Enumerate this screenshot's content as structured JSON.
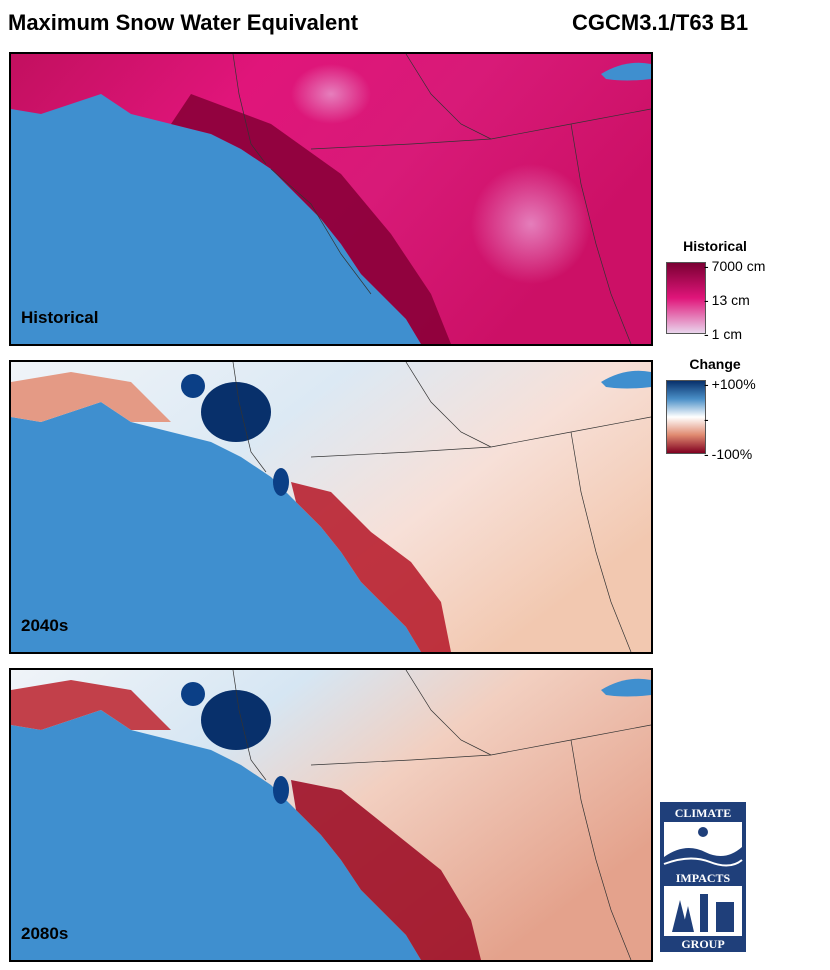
{
  "title": "Maximum Snow Water Equivalent",
  "model": "CGCM3.1/T63 B1",
  "panels": [
    {
      "label": "Historical",
      "scheme": "historical"
    },
    {
      "label": "2040s",
      "scheme": "change"
    },
    {
      "label": "2080s",
      "scheme": "change"
    }
  ],
  "legend_historical": {
    "title": "Historical",
    "ticks": [
      "7000 cm",
      "13 cm",
      "1 cm"
    ],
    "colors": [
      "#7a0033",
      "#e0157a",
      "#e9d4ec"
    ]
  },
  "legend_change": {
    "title": "Change",
    "ticks": [
      "+100%",
      "",
      "-100%"
    ],
    "colors": [
      "#08306b",
      "#ffffff",
      "#800020"
    ]
  },
  "logo": {
    "top_text": "CLIMATE",
    "mid_text": "IMPACTS",
    "bottom_text": "GROUP",
    "color": "#1f3f7a"
  }
}
